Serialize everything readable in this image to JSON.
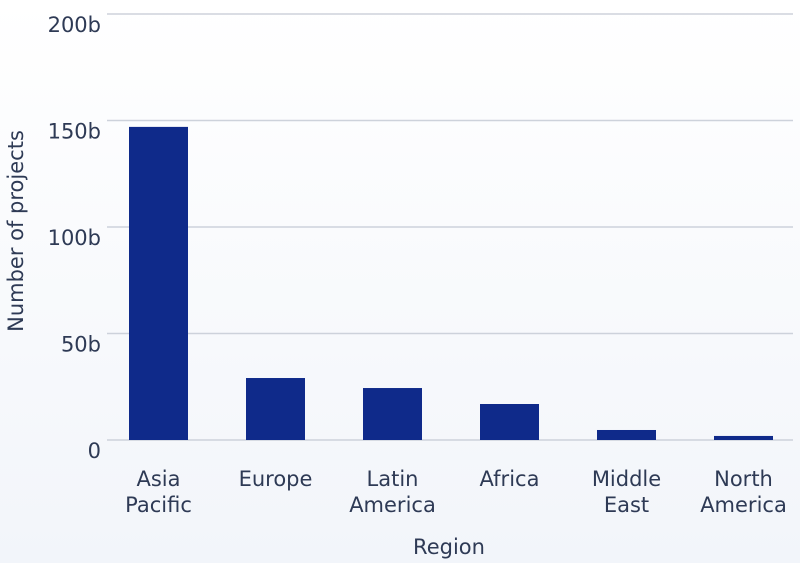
{
  "chart_data": {
    "type": "bar",
    "x_label": "Region",
    "y_label": "Number of projects",
    "categories": [
      "Asia Pacific",
      "Europe",
      "Latin America",
      "Africa",
      "Middle East",
      "North America"
    ],
    "values": [
      147,
      29.1,
      24.4,
      16.9,
      4.7,
      1.9
    ],
    "color": "#0f2a8a",
    "ylim": [
      0,
      200
    ],
    "yticks": [
      0,
      {
        "value": 50,
        "label": "50b"
      },
      {
        "value": 100,
        "label": "100b"
      },
      {
        "value": 150,
        "label": "150b"
      },
      {
        "value": 200,
        "label": "200b"
      }
    ],
    "grid": true
  }
}
